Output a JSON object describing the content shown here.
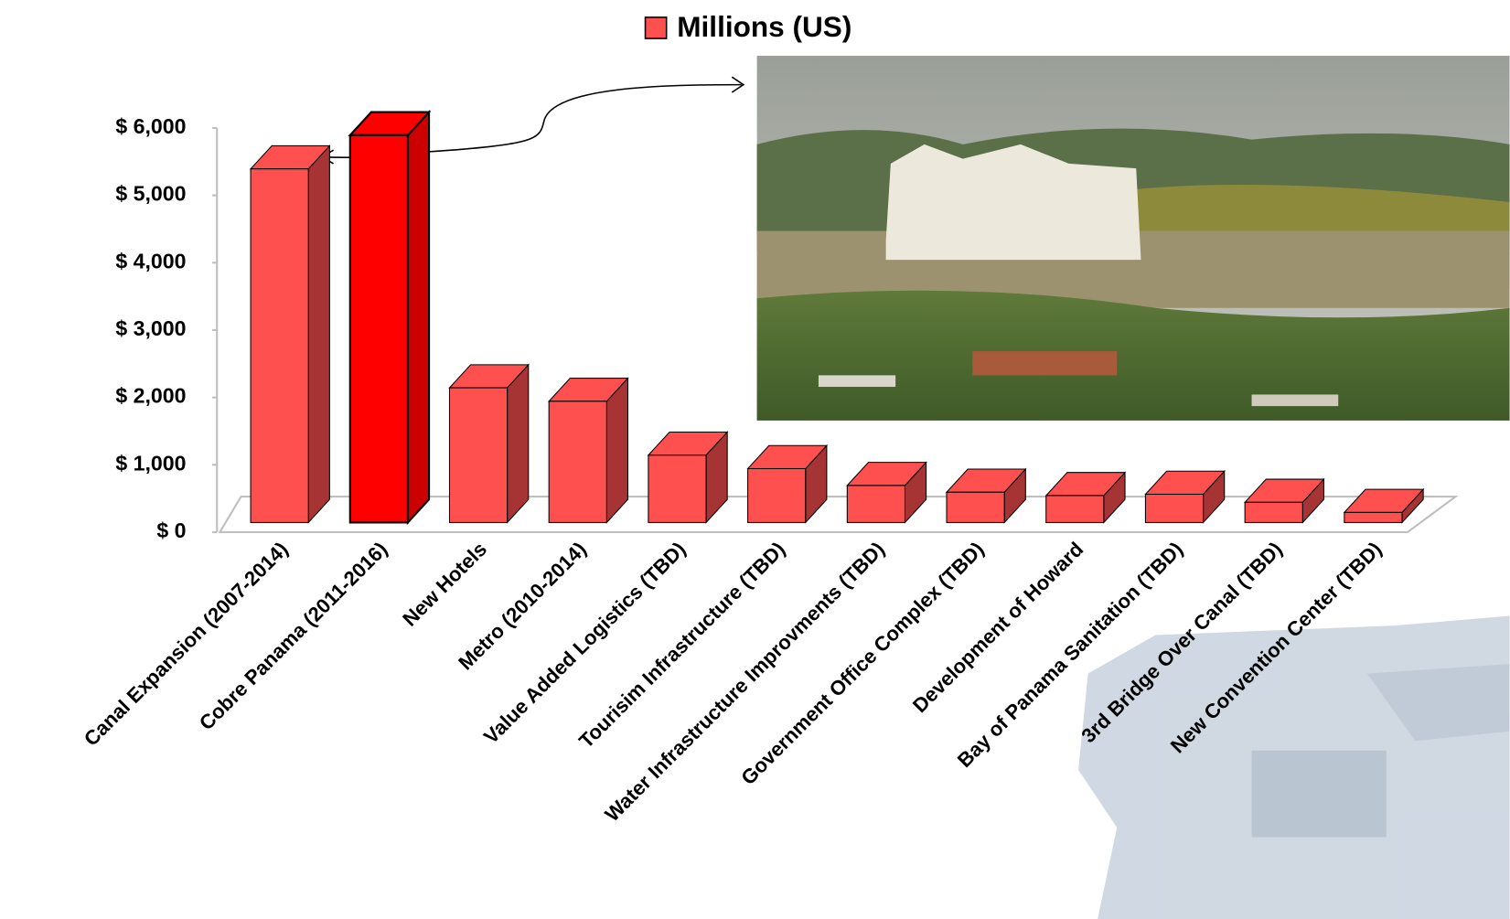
{
  "chart_data": {
    "type": "bar3d",
    "categories": [
      "Canal Expansion (2007-2014)",
      "Cobre Panama (2011-2016)",
      "New Hotels",
      "Metro (2010-2014)",
      "Value Added Logistics (TBD)",
      "Tourisim Infrastructure (TBD)",
      "Water Infrastructure Improvments (TBD)",
      "Government Office Complex (TBD)",
      "Development of Howard",
      "Bay of Panama Sanitation (TBD)",
      "3rd Bridge Over Canal (TBD)",
      "New Convention Center (TBD)"
    ],
    "series": [
      {
        "name": "Millions (US)",
        "color": "#ff5050",
        "values": [
          5250,
          5750,
          2000,
          1800,
          1000,
          800,
          550,
          450,
          400,
          420,
          300,
          150
        ],
        "point_colors": [
          "#ff5050",
          "#ff0000",
          "#ff5050",
          "#ff5050",
          "#ff5050",
          "#ff5050",
          "#ff5050",
          "#ff5050",
          "#ff5050",
          "#ff5050",
          "#ff5050",
          "#ff5050"
        ]
      }
    ],
    "ylim": [
      0,
      6000
    ],
    "yticks": [
      {
        "value": 0,
        "label": "$ 0"
      },
      {
        "value": 1000,
        "label": "$ 1,000"
      },
      {
        "value": 2000,
        "label": "$ 2,000"
      },
      {
        "value": 3000,
        "label": "$ 3,000"
      },
      {
        "value": 4000,
        "label": "$ 4,000"
      },
      {
        "value": 5000,
        "label": "$ 5,000"
      },
      {
        "value": 6000,
        "label": "$ 6,000"
      }
    ],
    "legend": "top",
    "grid": false
  }
}
